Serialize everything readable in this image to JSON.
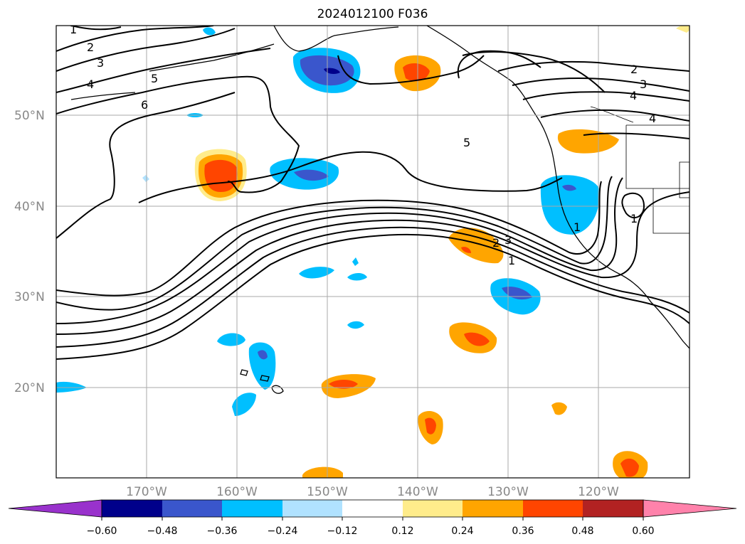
{
  "title": "2024012100 F036",
  "latitude_labels": [
    "50°N",
    "40°N",
    "30°N",
    "20°N"
  ],
  "longitude_labels": [
    "170°W",
    "160°W",
    "150°W",
    "140°W",
    "130°W",
    "120°W"
  ],
  "contour_labels": [
    "1",
    "2",
    "3",
    "4",
    "5",
    "6",
    "5",
    "4",
    "3",
    "2",
    "1",
    "2",
    "3",
    "1",
    "4",
    "1"
  ],
  "colorbar": {
    "ticks": [
      "−0.60",
      "−0.48",
      "−0.36",
      "−0.24",
      "−0.12",
      "0.12",
      "0.24",
      "0.36",
      "0.48",
      "0.60"
    ],
    "colors": [
      "#9932cc",
      "#00008b",
      "#3a56cc",
      "#00bfff",
      "#b0e2ff",
      "#ffffff",
      "#ffec8b",
      "#ffa500",
      "#ff4500",
      "#b22222",
      "#ff82ab"
    ]
  }
}
